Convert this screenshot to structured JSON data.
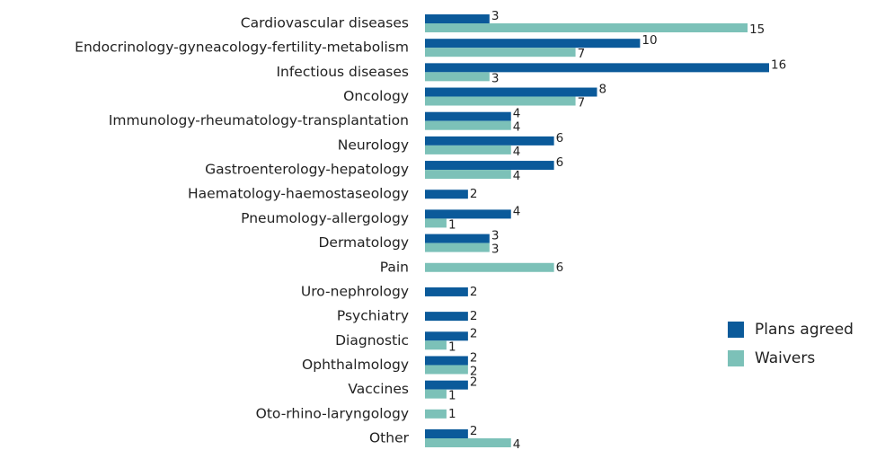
{
  "chart_data": {
    "type": "bar",
    "orientation": "horizontal",
    "categories": [
      "Cardiovascular diseases",
      "Endocrinology-gyneacology-fertility-metabolism",
      "Infectious diseases",
      "Oncology",
      "Immunology-rheumatology-transplantation",
      "Neurology",
      "Gastroenterology-hepatology",
      "Haematology-haemostaseology",
      "Pneumology-allergology",
      "Dermatology",
      "Pain",
      "Uro-nephrology",
      "Psychiatry",
      "Diagnostic",
      "Ophthalmology",
      "Vaccines",
      "Oto-rhino-laryngology",
      "Other"
    ],
    "series": [
      {
        "name": "Plans agreed",
        "color": "#0b5a9a",
        "values": [
          3,
          10,
          16,
          8,
          4,
          6,
          6,
          2,
          4,
          3,
          null,
          2,
          2,
          2,
          2,
          2,
          null,
          2
        ]
      },
      {
        "name": "Waivers",
        "color": "#7cc1b8",
        "values": [
          15,
          7,
          3,
          7,
          4,
          4,
          4,
          null,
          1,
          3,
          6,
          null,
          null,
          1,
          2,
          1,
          1,
          4
        ]
      }
    ],
    "legend": "right"
  }
}
